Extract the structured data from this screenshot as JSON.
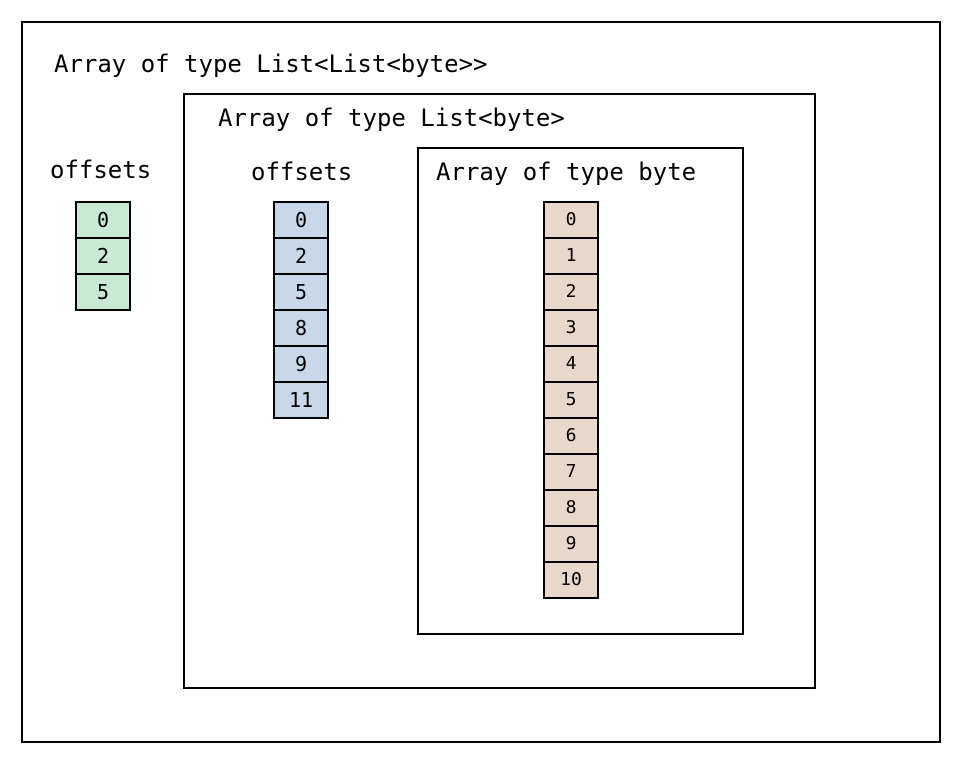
{
  "outer": {
    "title": "Array of type List<List<byte>>",
    "offsets_label": "offsets",
    "offsets": [
      "0",
      "2",
      "5"
    ]
  },
  "middle": {
    "title": "Array of type List<byte>",
    "offsets_label": "offsets",
    "offsets": [
      "0",
      "2",
      "5",
      "8",
      "9",
      "11"
    ]
  },
  "inner": {
    "title": "Array of type byte",
    "values": [
      "0",
      "1",
      "2",
      "3",
      "4",
      "5",
      "6",
      "7",
      "8",
      "9",
      "10"
    ]
  },
  "colors": {
    "outer_offsets_fill": "#c8e9d4",
    "middle_offsets_fill": "#c6d8ea",
    "byte_values_fill": "#ead7cb",
    "border": "#000000"
  }
}
